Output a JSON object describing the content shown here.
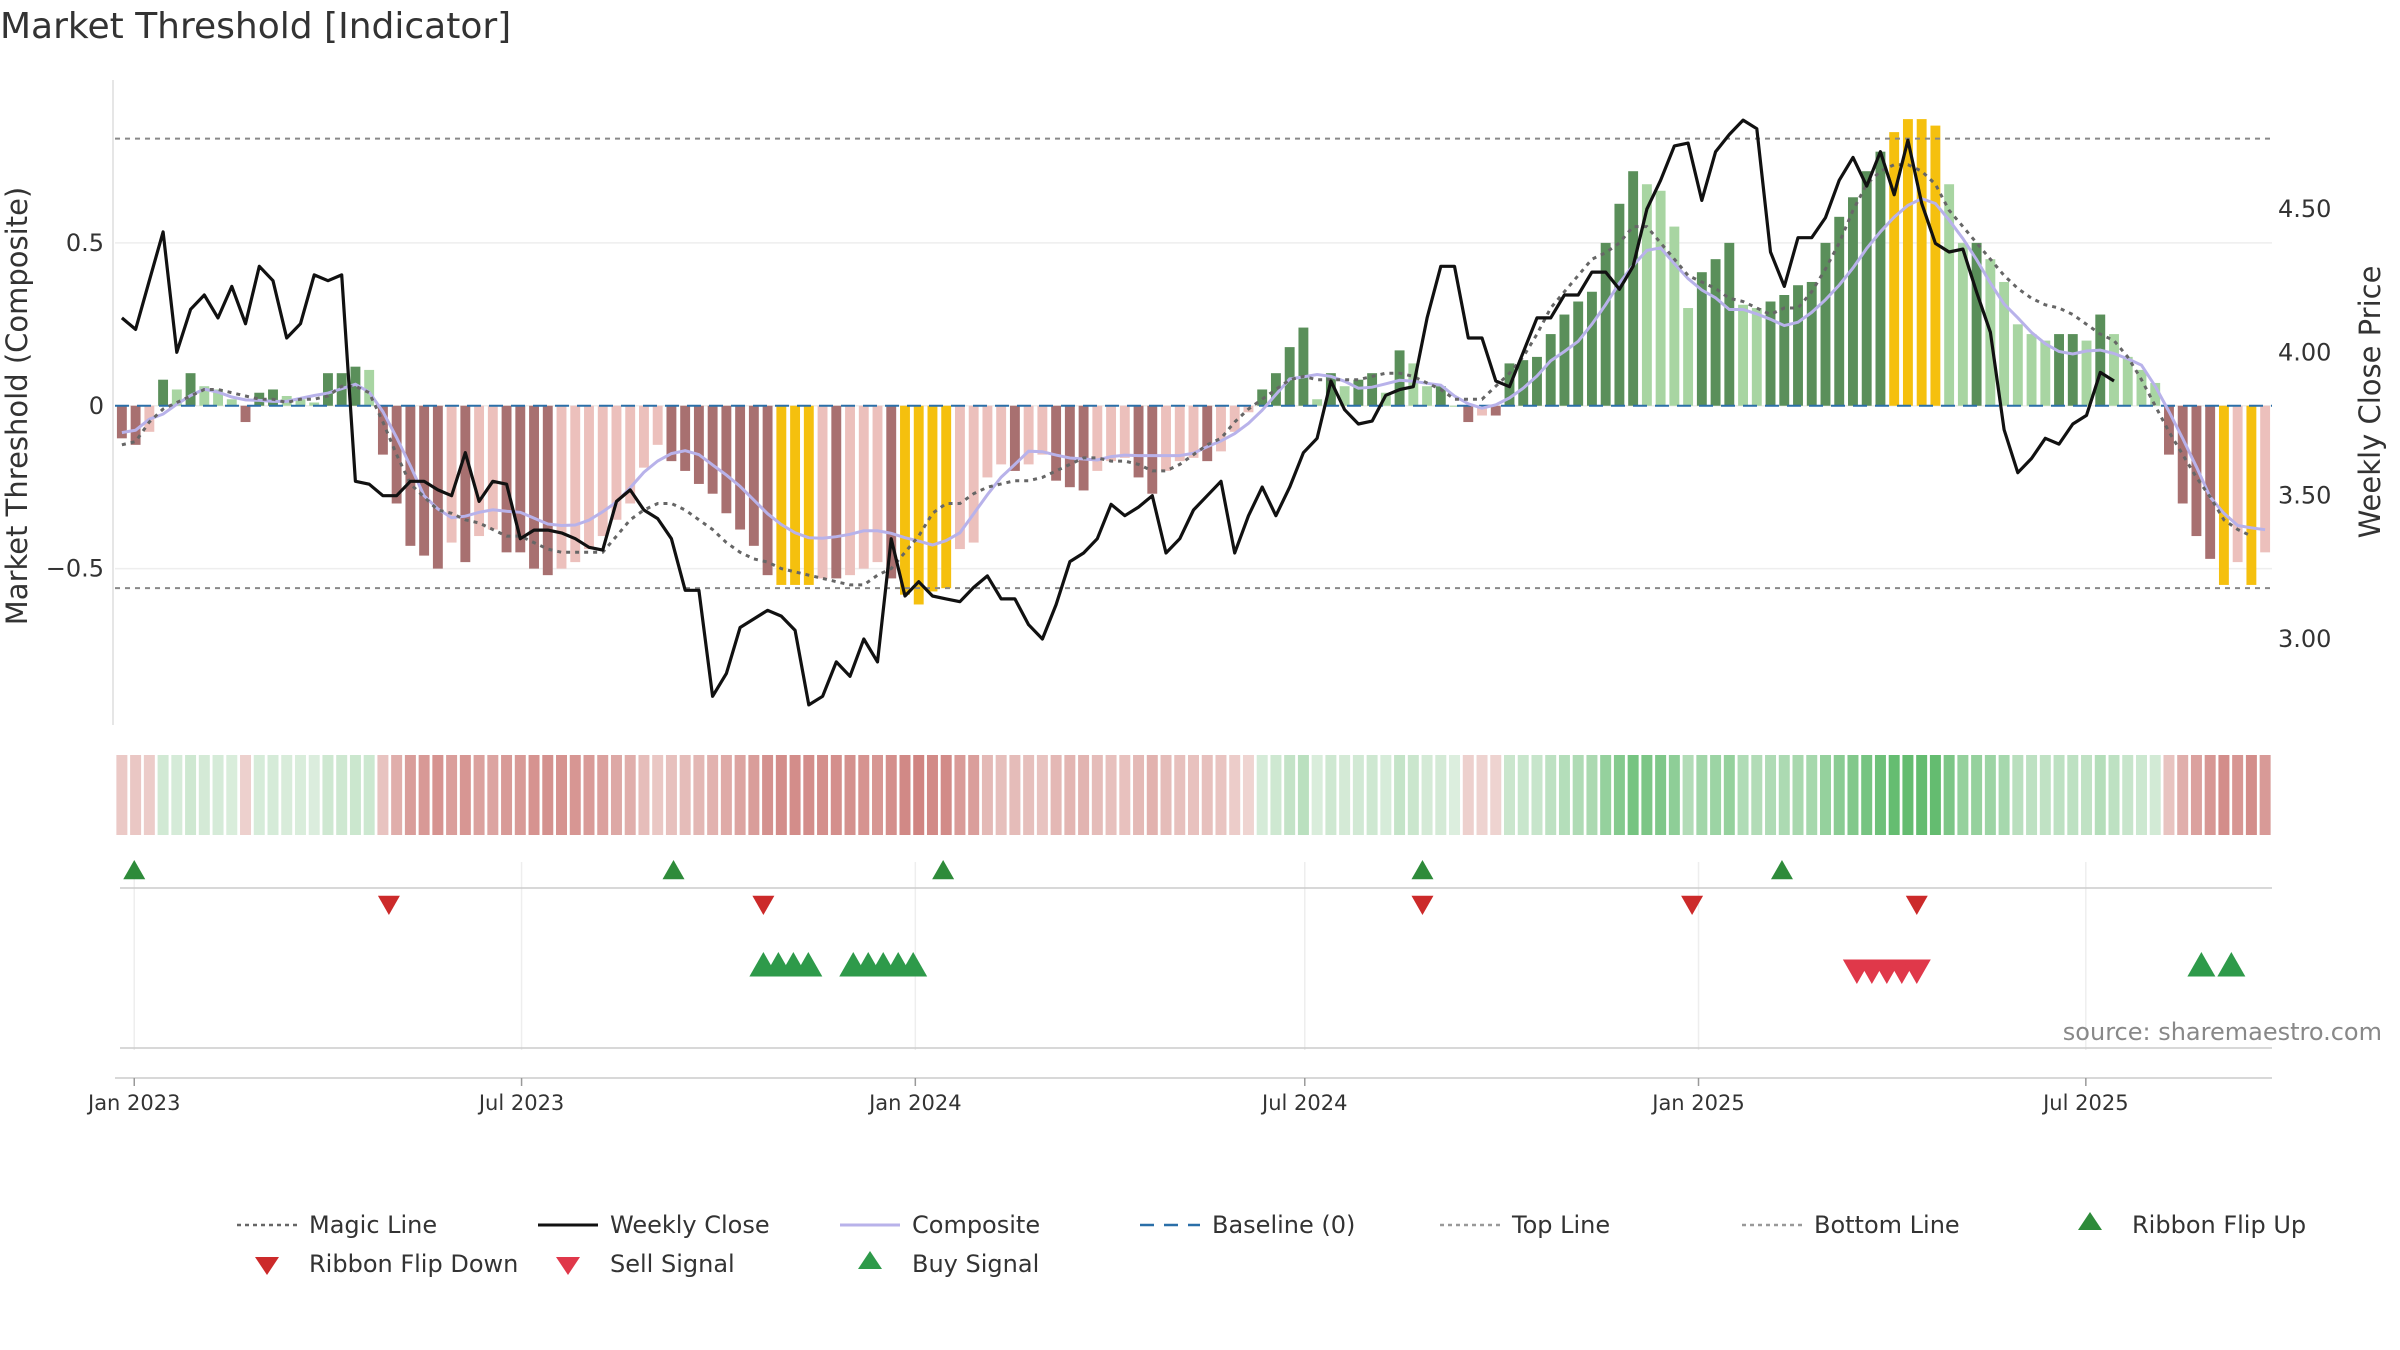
{
  "title": "Market Threshold [Indicator]",
  "source_text": "source: sharemaestro.com",
  "chart_data": {
    "type": "bar",
    "title": "Market Threshold [Indicator]",
    "ylabel_left": "Market Threshold (Composite)",
    "ylabel_right": "Weekly Close Price",
    "y_left_ticks": [
      {
        "value": 0.5,
        "label": "0.5"
      },
      {
        "value": 0,
        "label": "0"
      },
      {
        "value": -0.5,
        "label": "−0.5"
      }
    ],
    "y_right_ticks": [
      {
        "value": 4.5,
        "label": "4.50"
      },
      {
        "value": 4.0,
        "label": "4.00"
      },
      {
        "value": 3.5,
        "label": "3.50"
      },
      {
        "value": 3.0,
        "label": "3.00"
      }
    ],
    "ylim_left": [
      -0.98,
      1.0
    ],
    "ylim_right": [
      2.7,
      4.95
    ],
    "x_start": "2022-12-23",
    "x_end": "2025-09-26",
    "x_ticks": [
      {
        "date": "2023-01-01",
        "label": "Jan 2023"
      },
      {
        "date": "2023-07-01",
        "label": "Jul 2023"
      },
      {
        "date": "2024-01-01",
        "label": "Jan 2024"
      },
      {
        "date": "2024-07-01",
        "label": "Jul 2024"
      },
      {
        "date": "2025-01-01",
        "label": "Jan 2025"
      },
      {
        "date": "2025-07-01",
        "label": "Jul 2025"
      }
    ],
    "top_line": 0.82,
    "bottom_line": -0.56,
    "baseline": 0,
    "bar_colors": {
      "strong_pos": "#5a8f5a",
      "weak_pos": "#a8d5a2",
      "strong_neg": "#a87070",
      "weak_neg": "#ecc0bc",
      "extreme": "#f5c00e"
    },
    "series": [
      {
        "name": "Composite",
        "values": [
          -0.1,
          -0.12,
          -0.08,
          0.08,
          0.05,
          0.1,
          0.06,
          0.05,
          0.02,
          -0.05,
          0.04,
          0.05,
          0.03,
          0.02,
          0.01,
          0.1,
          0.1,
          0.12,
          0.11,
          -0.15,
          -0.3,
          -0.43,
          -0.46,
          -0.5,
          -0.42,
          -0.48,
          -0.4,
          -0.38,
          -0.45,
          -0.45,
          -0.5,
          -0.52,
          -0.5,
          -0.48,
          -0.44,
          -0.4,
          -0.35,
          -0.3,
          -0.19,
          -0.12,
          -0.17,
          -0.2,
          -0.24,
          -0.27,
          -0.33,
          -0.38,
          -0.43,
          -0.52,
          -0.55,
          -0.55,
          -0.55,
          -0.53,
          -0.53,
          -0.52,
          -0.5,
          -0.48,
          -0.53,
          -0.58,
          -0.61,
          -0.57,
          -0.56,
          -0.44,
          -0.42,
          -0.22,
          -0.18,
          -0.2,
          -0.18,
          -0.15,
          -0.23,
          -0.25,
          -0.26,
          -0.2,
          -0.17,
          -0.16,
          -0.22,
          -0.27,
          -0.2,
          -0.17,
          -0.16,
          -0.17,
          -0.14,
          -0.08,
          -0.02,
          0.05,
          0.1,
          0.18,
          0.24,
          0.02,
          0.1,
          0.06,
          0.08,
          0.1,
          0.04,
          0.17,
          0.13,
          0.06,
          0.06,
          0.0,
          -0.05,
          -0.03,
          -0.03,
          0.13,
          0.14,
          0.15,
          0.22,
          0.28,
          0.32,
          0.35,
          0.5,
          0.62,
          0.72,
          0.68,
          0.66,
          0.55,
          0.3,
          0.41,
          0.45,
          0.5,
          0.31,
          0.3,
          0.32,
          0.34,
          0.37,
          0.38,
          0.5,
          0.58,
          0.64,
          0.72,
          0.78,
          0.84,
          0.88,
          0.88,
          0.86,
          0.68,
          0.5,
          0.5,
          0.45,
          0.38,
          0.25,
          0.22,
          0.2,
          0.22,
          0.22,
          0.2,
          0.28,
          0.22,
          0.15,
          0.11,
          0.07,
          -0.15,
          -0.3,
          -0.4,
          -0.47,
          -0.55,
          -0.48,
          -0.55,
          -0.45
        ]
      },
      {
        "name": "Weekly Close",
        "values": [
          4.12,
          4.08,
          4.25,
          4.42,
          4.0,
          4.15,
          4.2,
          4.12,
          4.23,
          4.1,
          4.3,
          4.25,
          4.05,
          4.1,
          4.27,
          4.25,
          4.27,
          3.55,
          3.54,
          3.5,
          3.5,
          3.55,
          3.55,
          3.52,
          3.5,
          3.65,
          3.48,
          3.55,
          3.54,
          3.35,
          3.38,
          3.38,
          3.37,
          3.35,
          3.32,
          3.31,
          3.48,
          3.52,
          3.45,
          3.42,
          3.35,
          3.17,
          3.17,
          2.8,
          2.88,
          3.04,
          3.07,
          3.1,
          3.08,
          3.03,
          2.77,
          2.8,
          2.92,
          2.87,
          3.0,
          2.92,
          3.35,
          3.15,
          3.2,
          3.15,
          3.14,
          3.13,
          3.18,
          3.22,
          3.14,
          3.14,
          3.05,
          3.0,
          3.12,
          3.27,
          3.3,
          3.35,
          3.47,
          3.43,
          3.46,
          3.5,
          3.3,
          3.35,
          3.45,
          3.5,
          3.55,
          3.3,
          3.43,
          3.53,
          3.43,
          3.53,
          3.65,
          3.7,
          3.9,
          3.8,
          3.75,
          3.76,
          3.85,
          3.87,
          3.88,
          4.12,
          4.3,
          4.3,
          4.05,
          4.05,
          3.9,
          3.88,
          4.0,
          4.12,
          4.12,
          4.2,
          4.2,
          4.28,
          4.28,
          4.22,
          4.3,
          4.5,
          4.6,
          4.72,
          4.73,
          4.53,
          4.7,
          4.76,
          4.81,
          4.78,
          4.35,
          4.23,
          4.4,
          4.4,
          4.47,
          4.6,
          4.68,
          4.58,
          4.7,
          4.55,
          4.74,
          4.52,
          4.38,
          4.35,
          4.36,
          4.21,
          4.07,
          3.73,
          3.58,
          3.63,
          3.7,
          3.68,
          3.75,
          3.78,
          3.93,
          3.9
        ]
      },
      {
        "name": "Magic Line",
        "values": [
          -0.12,
          -0.11,
          -0.05,
          -0.01,
          0.01,
          0.03,
          0.05,
          0.05,
          0.04,
          0.03,
          0.02,
          0.02,
          0.01,
          0.02,
          0.02,
          0.03,
          0.06,
          0.06,
          0.04,
          -0.05,
          -0.15,
          -0.24,
          -0.28,
          -0.32,
          -0.33,
          -0.35,
          -0.36,
          -0.38,
          -0.4,
          -0.4,
          -0.42,
          -0.44,
          -0.45,
          -0.45,
          -0.45,
          -0.45,
          -0.4,
          -0.35,
          -0.32,
          -0.3,
          -0.3,
          -0.32,
          -0.35,
          -0.38,
          -0.42,
          -0.45,
          -0.47,
          -0.48,
          -0.5,
          -0.51,
          -0.52,
          -0.53,
          -0.54,
          -0.55,
          -0.55,
          -0.52,
          -0.5,
          -0.45,
          -0.4,
          -0.33,
          -0.3,
          -0.3,
          -0.27,
          -0.25,
          -0.24,
          -0.23,
          -0.23,
          -0.22,
          -0.2,
          -0.18,
          -0.16,
          -0.16,
          -0.17,
          -0.17,
          -0.18,
          -0.2,
          -0.2,
          -0.18,
          -0.15,
          -0.12,
          -0.1,
          -0.05,
          -0.01,
          0.02,
          0.05,
          0.08,
          0.09,
          0.08,
          0.08,
          0.08,
          0.08,
          0.09,
          0.1,
          0.1,
          0.09,
          0.07,
          0.05,
          0.02,
          0.02,
          0.02,
          0.06,
          0.1,
          0.15,
          0.22,
          0.3,
          0.35,
          0.4,
          0.45,
          0.47,
          0.5,
          0.55,
          0.55,
          0.5,
          0.45,
          0.4,
          0.38,
          0.36,
          0.33,
          0.32,
          0.3,
          0.28,
          0.3,
          0.3,
          0.35,
          0.42,
          0.5,
          0.6,
          0.68,
          0.72,
          0.74,
          0.74,
          0.72,
          0.68,
          0.6,
          0.55,
          0.5,
          0.45,
          0.4,
          0.36,
          0.33,
          0.31,
          0.3,
          0.28,
          0.25,
          0.22,
          0.2,
          0.15,
          0.08,
          0.0,
          -0.08,
          -0.15,
          -0.22,
          -0.28,
          -0.35,
          -0.38,
          -0.4
        ]
      },
      {
        "name": "Top Line",
        "values": [
          0.82
        ]
      },
      {
        "name": "Bottom Line",
        "values": [
          -0.56
        ]
      },
      {
        "name": "Baseline (0)",
        "values": [
          0
        ]
      }
    ],
    "ribbon_row1_flip_up_dates": [
      "2023-01-01",
      "2023-09-10",
      "2024-01-14",
      "2024-08-25",
      "2025-02-09"
    ],
    "ribbon_row1_flip_down_dates": [
      "2023-04-30",
      "2023-10-22",
      "2024-08-25",
      "2024-12-29",
      "2025-04-13"
    ],
    "signal_row2_buy_dates": [
      "2023-10-22",
      "2023-10-29",
      "2023-11-05",
      "2023-11-12",
      "2023-12-03",
      "2023-12-10",
      "2023-12-17",
      "2023-12-24",
      "2023-12-31",
      "2025-08-24",
      "2025-09-07"
    ],
    "signal_row2_sell_dates": [
      "2025-03-16",
      "2025-03-23",
      "2025-03-30",
      "2025-04-06",
      "2025-04-13"
    ],
    "legend_placement": "bottom",
    "legend": [
      {
        "label": "Magic Line",
        "style": "dotted",
        "color": "#666666"
      },
      {
        "label": "Weekly Close",
        "style": "solid",
        "color": "#111111"
      },
      {
        "label": "Composite",
        "style": "solid",
        "color": "#b8b2ea"
      },
      {
        "label": "Baseline (0)",
        "style": "dashed",
        "color": "#2a6fa8"
      },
      {
        "label": "Top Line",
        "style": "dotted",
        "color": "#999999"
      },
      {
        "label": "Bottom Line",
        "style": "dotted",
        "color": "#999999"
      },
      {
        "label": "Ribbon Flip Up",
        "style": "triangle-up",
        "color": "#2e8b3a"
      },
      {
        "label": "Ribbon Flip Down",
        "style": "triangle-down",
        "color": "#cc2a2a"
      },
      {
        "label": "Sell Signal",
        "style": "triangle-down",
        "color": "#e0384a"
      },
      {
        "label": "Buy Signal",
        "style": "triangle-up",
        "color": "#2e9a4a"
      }
    ],
    "grid": true
  }
}
